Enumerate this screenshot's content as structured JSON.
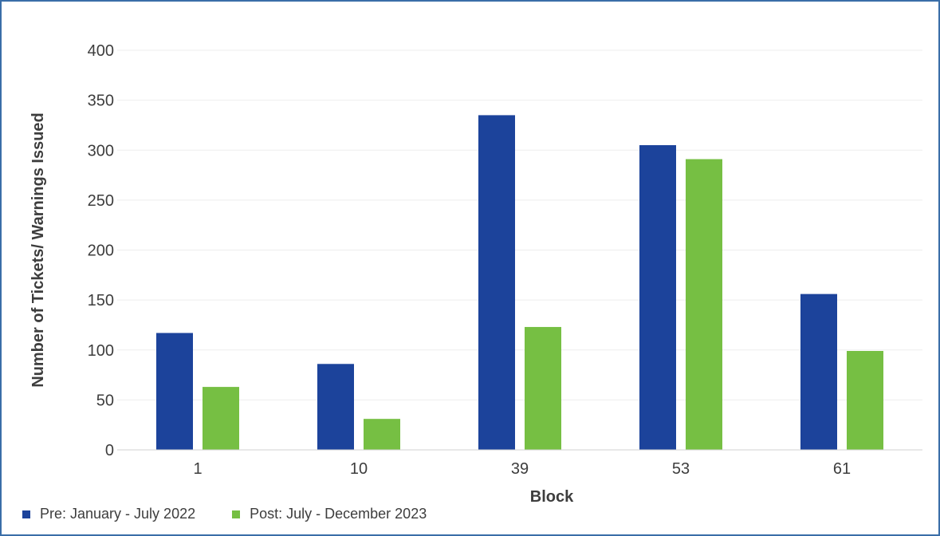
{
  "colors": {
    "pre": "#1c439b",
    "post": "#76bf43",
    "grid": "#eeeeee",
    "axis": "#d0d0d0"
  },
  "chart_data": {
    "type": "bar",
    "xlabel": "Block",
    "ylabel": "Number of Tickets/ Warnings Issued",
    "categories": [
      "1",
      "10",
      "39",
      "53",
      "61"
    ],
    "ylim": [
      0,
      400
    ],
    "yticks": [
      "0",
      "50",
      "100",
      "150",
      "200",
      "250",
      "300",
      "350",
      "400"
    ],
    "grid": true,
    "legend_position": "bottom-left",
    "series": [
      {
        "name": "Pre: January - July 2022",
        "values": [
          117,
          86,
          335,
          305,
          156
        ]
      },
      {
        "name": "Post: July - December 2023",
        "values": [
          63,
          31,
          123,
          291,
          99
        ]
      }
    ]
  }
}
